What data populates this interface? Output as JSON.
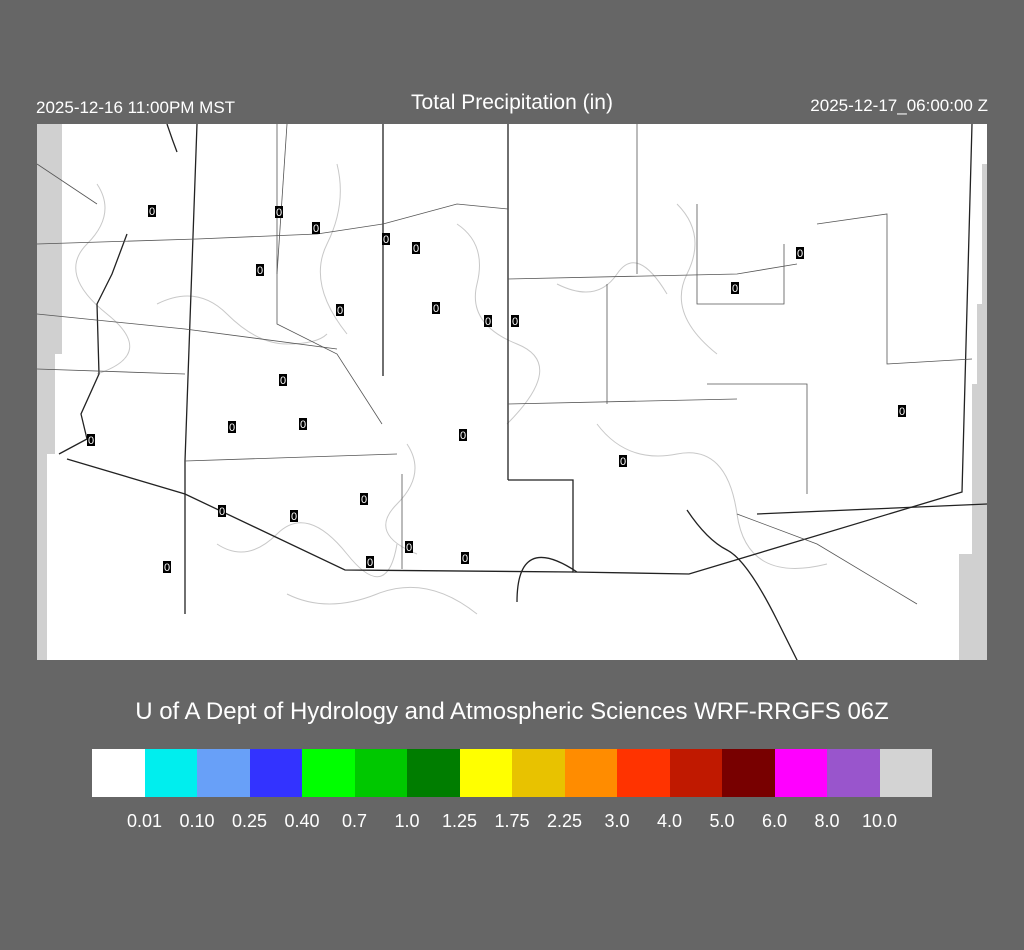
{
  "header": {
    "local_time": "2025-12-16 11:00PM MST",
    "title": "Total Precipitation (in)",
    "valid_time": "2025-12-17_06:00:00 Z"
  },
  "credit": "U of A Dept of Hydrology and Atmospheric Sciences WRF-RRGFS 06Z",
  "legend": {
    "colors": [
      "#ffffff",
      "#00eeee",
      "#68a0f8",
      "#3333ff",
      "#00ff00",
      "#00c800",
      "#007d00",
      "#ffff00",
      "#e8c200",
      "#ff8c00",
      "#ff3300",
      "#c01900",
      "#780000",
      "#ff00ff",
      "#9955cc",
      "#d3d3d3"
    ],
    "labels": [
      "0.01",
      "0.10",
      "0.25",
      "0.40",
      "0.7",
      "1.0",
      "1.25",
      "1.75",
      "2.25",
      "3.0",
      "4.0",
      "5.0",
      "6.0",
      "8.0",
      "10.0"
    ]
  },
  "stations": {
    "values": [
      "0",
      "0",
      "0",
      "0",
      "0",
      "0",
      "0",
      "0",
      "0",
      "0",
      "0",
      "0",
      "0",
      "0",
      "0",
      "0",
      "0",
      "0",
      "0",
      "0",
      "0",
      "0",
      "0",
      "0",
      "0",
      "0"
    ]
  }
}
